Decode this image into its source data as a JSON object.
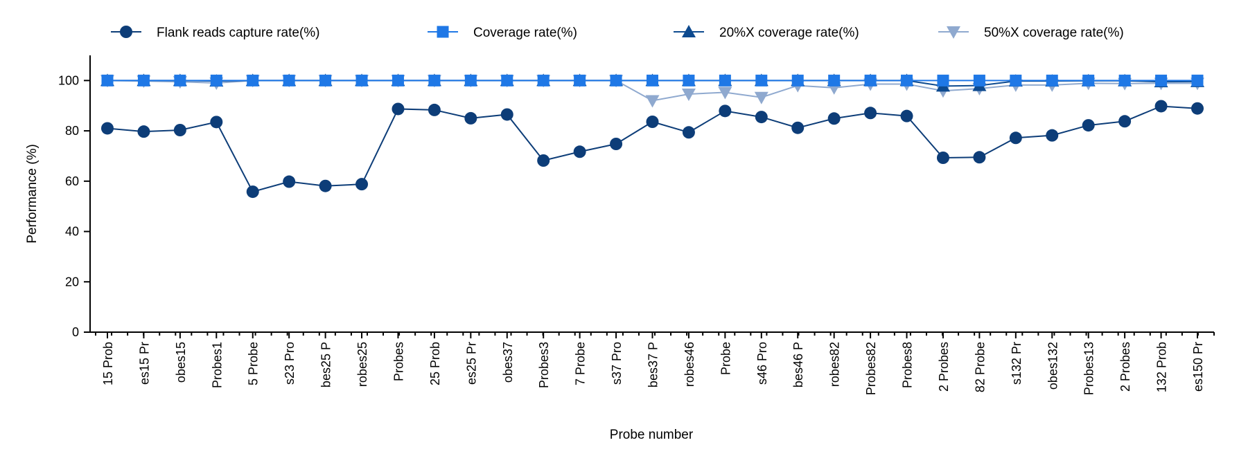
{
  "chart_data": {
    "type": "line",
    "title": "",
    "xlabel": "Probe number",
    "ylabel": "Performance (%)",
    "ylim": [
      0,
      110
    ],
    "yticks": [
      0,
      20,
      40,
      60,
      80,
      100
    ],
    "grid": false,
    "legend_position": "top",
    "categories": [
      "15 Prob",
      "es15 Pr",
      "obes15",
      "Probes1",
      "5 Probe",
      "s23 Pro",
      "bes25 P",
      "robes25",
      "Probes",
      "25 Prob",
      "es25 Pr",
      "obes37",
      "Probes3",
      "7 Probe",
      "s37 Pro",
      "bes37 P",
      "robes46",
      "Probe",
      "s46 Pro",
      "bes46 P",
      "robes82",
      "Probes82",
      "Probes8",
      "2 Probes",
      "82 Probe",
      "s132 Pr",
      "obes132",
      "Probes13",
      "2 Probes",
      "132 Prob",
      "es150 Pr"
    ],
    "series": [
      {
        "name": "Flank reads capture rate(%)",
        "marker": "circle",
        "color": "#0d3d78",
        "values": [
          81,
          79.7,
          80.3,
          83.5,
          55.8,
          59.8,
          58.1,
          58.8,
          88.7,
          88.3,
          85,
          86.5,
          68.2,
          71.7,
          74.8,
          83.6,
          79.4,
          87.9,
          85.5,
          81.2,
          84.9,
          87.1,
          85.9,
          69.3,
          69.5,
          77.2,
          78.2,
          82.2,
          83.8,
          89.8,
          88.9
        ]
      },
      {
        "name": "Coverage rate(%)",
        "marker": "square",
        "color": "#1f78e6",
        "values": [
          100,
          100,
          100,
          100,
          100,
          100,
          100,
          100,
          100,
          100,
          100,
          100,
          100,
          100,
          100,
          100,
          100,
          100,
          100,
          100,
          100,
          100,
          100,
          100,
          100,
          100,
          100,
          100,
          100,
          100,
          100
        ]
      },
      {
        "name": "20%X coverage rate(%)",
        "marker": "triangle-up",
        "color": "#0d4a8f",
        "values": [
          100,
          100,
          100,
          99.8,
          100,
          100,
          100,
          100,
          100,
          100,
          100,
          100,
          100,
          100,
          100,
          100,
          100,
          100,
          100,
          100,
          100,
          100,
          100,
          97.8,
          98,
          99.8,
          99.8,
          99.9,
          99.9,
          99.5,
          99.6
        ]
      },
      {
        "name": "50%X coverage rate(%)",
        "marker": "triangle-down",
        "color": "#8fa9cf",
        "values": [
          100,
          99.8,
          99.5,
          99,
          100,
          100,
          100,
          100,
          100,
          100,
          100,
          100,
          100,
          100,
          100,
          92,
          94.6,
          95.3,
          93.3,
          98,
          97.1,
          98.6,
          98.6,
          95.9,
          96.8,
          98.2,
          98.2,
          98.9,
          98.8,
          98.9,
          98.9
        ]
      }
    ]
  }
}
